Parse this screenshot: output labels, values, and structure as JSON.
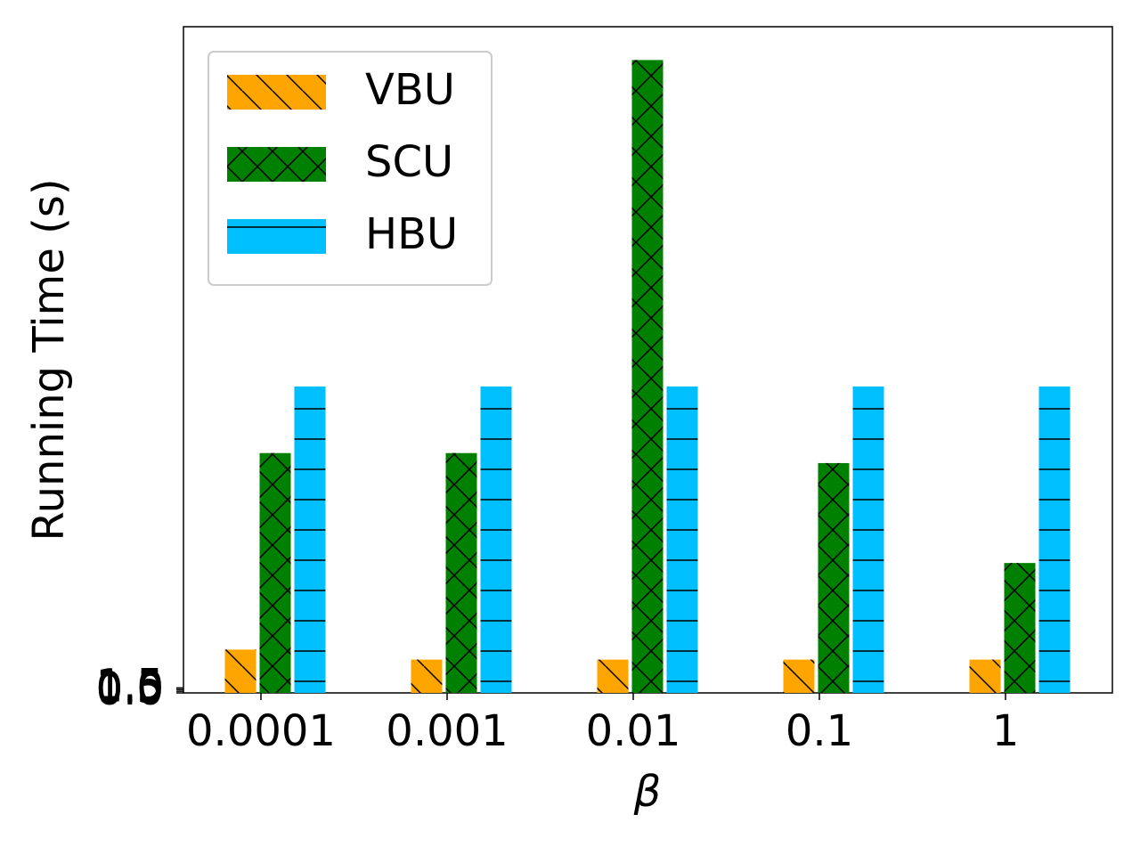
{
  "chart_data": {
    "type": "bar",
    "x_label": "β",
    "y_label": "Running Time (s)",
    "categories": [
      "0.0001",
      "0.001",
      "0.01",
      "0.1",
      "1"
    ],
    "series": [
      {
        "name": "VBU",
        "color": "#ffa500",
        "hatch": "\\",
        "values": [
          13,
          10,
          10,
          10,
          10
        ]
      },
      {
        "name": "SCU",
        "color": "#008000",
        "hatch": "x",
        "values": [
          72,
          72,
          190,
          69,
          39
        ]
      },
      {
        "name": "HBU",
        "color": "#00bfff",
        "hatch": "-",
        "values": [
          92,
          92,
          92,
          92,
          92
        ]
      }
    ],
    "ylim": [
      0,
      200
    ],
    "yticks": [
      {
        "value": 0,
        "label": "0.0"
      },
      0.5,
      {
        "value": 1,
        "label": "1.0"
      },
      1.5
    ],
    "legend": "upper left"
  }
}
